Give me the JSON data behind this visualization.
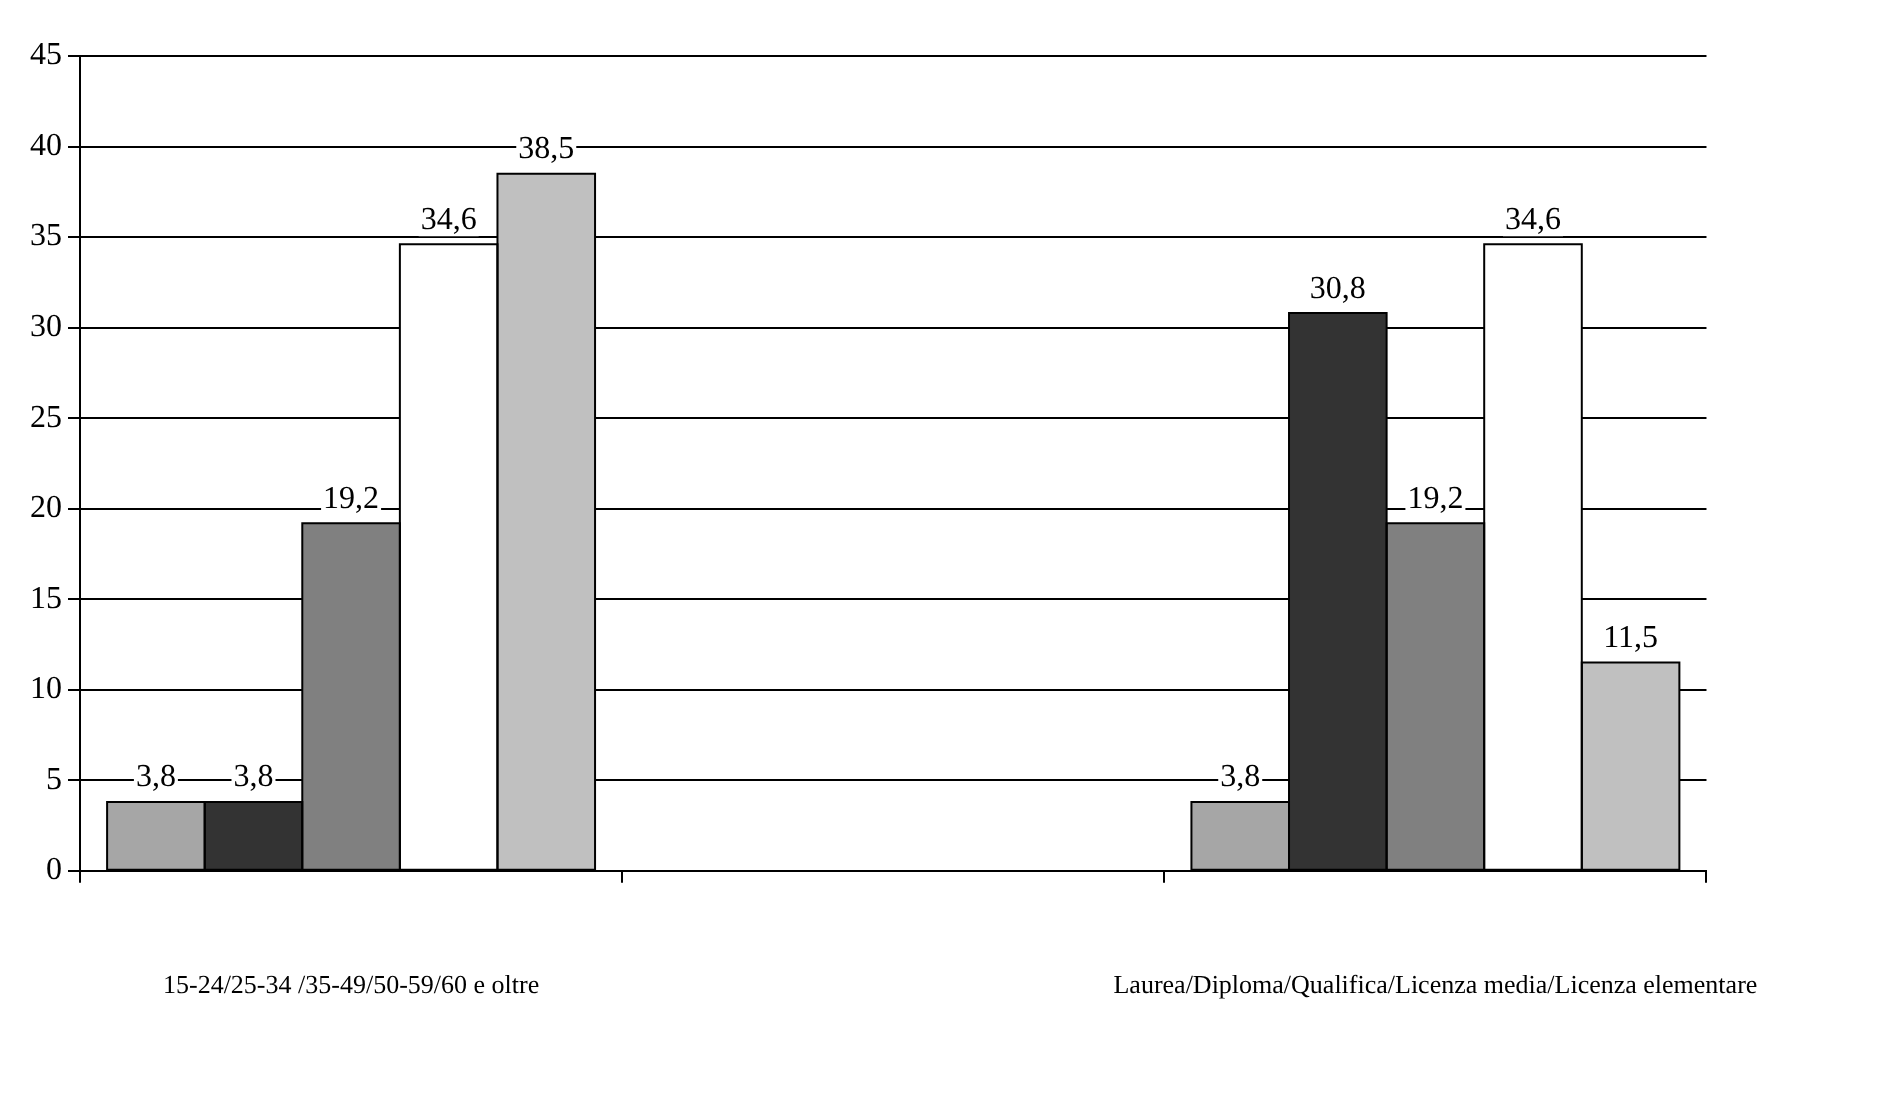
{
  "chart_data": {
    "type": "bar",
    "categories": [
      "15-24/25-34 /35-49/50-59/60 e oltre",
      null,
      "Laurea/Diploma/Qualifica/Licenza media/Licenza elementare"
    ],
    "series": [
      {
        "color": "#a6a6a6",
        "values": [
          3.8,
          null,
          3.8
        ],
        "value_labels": [
          "3,8",
          null,
          "3,8"
        ]
      },
      {
        "color": "#333333",
        "values": [
          3.8,
          null,
          30.8
        ],
        "value_labels": [
          "3,8",
          null,
          "30,8"
        ]
      },
      {
        "color": "#808080",
        "values": [
          19.2,
          null,
          19.2
        ],
        "value_labels": [
          "19,2",
          null,
          "19,2"
        ]
      },
      {
        "color": "#ffffff",
        "values": [
          34.6,
          null,
          34.6
        ],
        "value_labels": [
          "34,6",
          null,
          "34,6"
        ]
      },
      {
        "color": "#c0c0c0",
        "values": [
          38.5,
          null,
          11.5
        ],
        "value_labels": [
          "38,5",
          null,
          "11,5"
        ]
      }
    ],
    "ylim": [
      0,
      45
    ],
    "yticks": [
      0,
      5,
      10,
      15,
      20,
      25,
      30,
      35,
      40,
      45
    ],
    "grid": "y",
    "legend": false
  }
}
